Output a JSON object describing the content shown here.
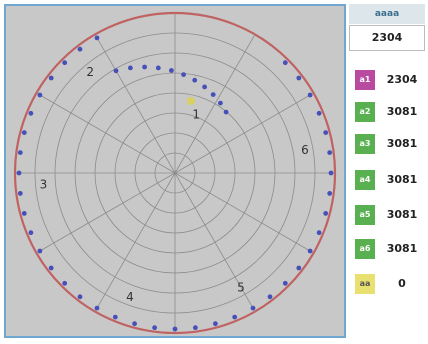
{
  "plot": {
    "colors": {
      "rim": "#c06262",
      "grid": "#8c8c8c",
      "dot": "#4650b8",
      "dot_highlight": "#d8d060"
    },
    "markers": [
      {
        "label": "1",
        "angle_deg": 20
      },
      {
        "label": "2",
        "angle_deg": -40
      },
      {
        "label": "3",
        "angle_deg": -95
      },
      {
        "label": "4",
        "angle_deg": -160
      },
      {
        "label": "5",
        "angle_deg": 150
      },
      {
        "label": "6",
        "angle_deg": 80
      }
    ]
  },
  "side": {
    "field": {
      "label": "aaaa",
      "value": "2304"
    },
    "rows": [
      {
        "badge": "a1",
        "color": "#b84aa0",
        "value": "2304"
      },
      {
        "badge": "a2",
        "color": "#58b050",
        "value": "3081"
      },
      {
        "badge": "a3",
        "color": "#58b050",
        "value": "3081"
      },
      {
        "badge": "a4",
        "color": "#58b050",
        "value": "3081"
      },
      {
        "badge": "a5",
        "color": "#58b050",
        "value": "3081"
      },
      {
        "badge": "a6",
        "color": "#58b050",
        "value": "3081"
      },
      {
        "badge": "aa",
        "color": "#e8e070",
        "value": "0"
      }
    ]
  }
}
